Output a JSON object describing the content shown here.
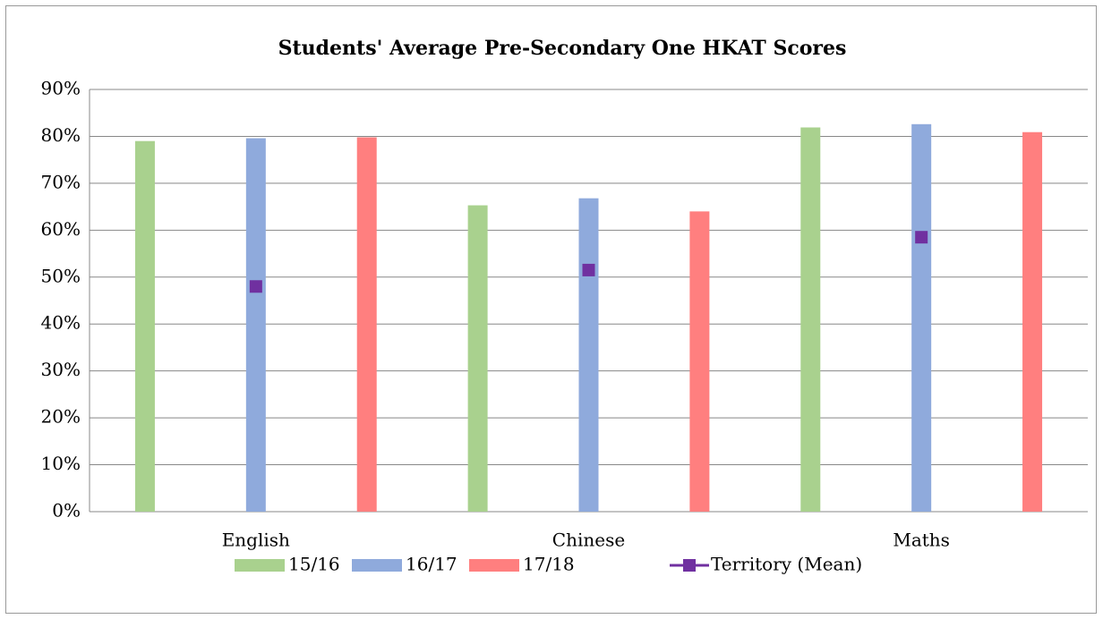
{
  "chart_data": {
    "type": "bar",
    "title": "Students' Average Pre-Secondary One HKAT Scores",
    "categories": [
      "English",
      "Chinese",
      "Maths"
    ],
    "series": [
      {
        "name": "15/16",
        "color": "#a9d18e",
        "values": [
          79,
          65.3,
          81.9
        ]
      },
      {
        "name": "16/17",
        "color": "#8faadc",
        "values": [
          79.6,
          66.8,
          82.6
        ]
      },
      {
        "name": "17/18",
        "color": "#ff7f7f",
        "values": [
          79.8,
          64,
          80.9
        ]
      },
      {
        "name": "Territory (Mean)",
        "type": "scatter",
        "color": "#7030a0",
        "values": [
          48,
          51.5,
          58.5
        ]
      }
    ],
    "ylim": [
      0,
      90
    ],
    "yticks": [
      {
        "value": 0,
        "label": "0%"
      },
      {
        "value": 10,
        "label": "10%"
      },
      {
        "value": 20,
        "label": "20%"
      },
      {
        "value": 30,
        "label": "30%"
      },
      {
        "value": 40,
        "label": "40%"
      },
      {
        "value": 50,
        "label": "50%"
      },
      {
        "value": 60,
        "label": "60%"
      },
      {
        "value": 70,
        "label": "70%"
      },
      {
        "value": 80,
        "label": "80%"
      },
      {
        "value": 90,
        "label": "90%"
      }
    ],
    "grid": true,
    "legend": "bottom"
  }
}
